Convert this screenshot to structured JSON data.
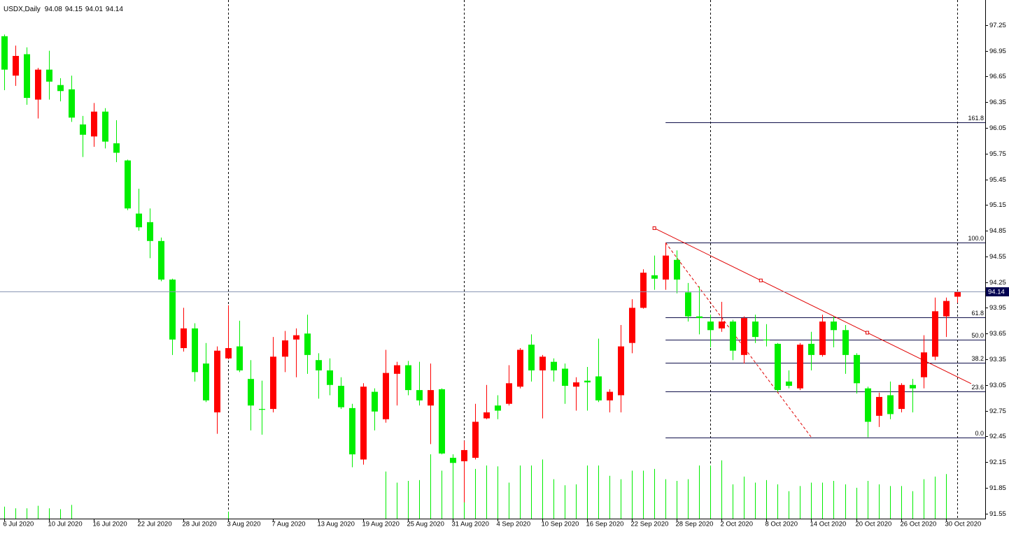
{
  "chart_data": {
    "type": "candlestick",
    "title": "USDX,Daily",
    "categories": [
      "6 Jul 2020",
      null,
      null,
      null,
      "10 Jul 2020",
      null,
      null,
      null,
      "16 Jul 2020",
      null,
      null,
      null,
      "22 Jul 2020",
      null,
      null,
      null,
      "28 Jul 2020",
      null,
      null,
      null,
      "3 Aug 2020",
      null,
      null,
      null,
      "7 Aug 2020",
      null,
      null,
      null,
      "13 Aug 2020",
      null,
      null,
      null,
      "19 Aug 2020",
      null,
      null,
      null,
      "25 Aug 2020",
      null,
      null,
      null,
      "31 Aug 2020",
      null,
      null,
      null,
      "4 Sep 2020",
      null,
      null,
      null,
      "10 Sep 2020",
      null,
      null,
      null,
      "16 Sep 2020",
      null,
      null,
      null,
      "22 Sep 2020",
      null,
      null,
      null,
      "28 Sep 2020",
      null,
      null,
      null,
      "2 Oct 2020",
      null,
      null,
      null,
      "8 Oct 2020",
      null,
      null,
      null,
      "14 Oct 2020",
      null,
      null,
      null,
      "20 Oct 2020",
      null,
      null,
      null,
      "26 Oct 2020",
      null,
      null,
      null,
      "30 Oct 2020",
      null
    ],
    "open": [
      97.12,
      96.66,
      96.91,
      96.38,
      96.73,
      96.55,
      96.5,
      96.09,
      95.95,
      96.24,
      95.87,
      95.67,
      95.05,
      94.95,
      94.73,
      94.28,
      93.48,
      93.71,
      93.3,
      92.73,
      93.36,
      93.5,
      93.12,
      92.77,
      92.77,
      93.38,
      93.58,
      93.65,
      93.34,
      93.22,
      93.04,
      92.78,
      92.18,
      92.97,
      92.65,
      93.18,
      93.28,
      92.99,
      92.81,
      93.0,
      92.2,
      92.16,
      92.2,
      92.66,
      92.81,
      92.83,
      93.03,
      93.52,
      93.22,
      93.32,
      93.24,
      93.03,
      93.1,
      93.15,
      92.87,
      92.93,
      93.54,
      93.95,
      94.33,
      94.28,
      94.51,
      94.13,
      93.85,
      93.79,
      93.71,
      93.79,
      93.4,
      93.79,
      93.58,
      93.53,
      93.09,
      93.01,
      93.53,
      93.4,
      93.79,
      93.69,
      93.4,
      93.01,
      92.69,
      92.93,
      92.77,
      93.05,
      93.14,
      93.38,
      93.85,
      94.08
    ],
    "high": [
      97.14,
      97.01,
      96.99,
      96.75,
      96.95,
      96.63,
      96.66,
      96.19,
      96.34,
      96.28,
      96.14,
      95.68,
      95.34,
      95.11,
      94.77,
      94.29,
      93.95,
      93.77,
      93.54,
      93.5,
      93.98,
      93.8,
      93.34,
      93.1,
      93.61,
      93.68,
      93.71,
      93.87,
      93.42,
      93.36,
      93.14,
      92.83,
      93.07,
      93.01,
      93.46,
      93.32,
      93.33,
      93.32,
      93.3,
      93.01,
      92.24,
      92.4,
      92.83,
      93.05,
      92.93,
      93.28,
      93.48,
      93.64,
      93.4,
      93.36,
      93.3,
      93.14,
      93.26,
      93.59,
      93.0,
      93.75,
      94.05,
      94.4,
      94.56,
      94.71,
      94.62,
      94.24,
      94.2,
      93.87,
      94.02,
      93.81,
      93.85,
      93.87,
      93.76,
      93.54,
      93.22,
      93.54,
      93.67,
      93.87,
      93.85,
      93.75,
      93.42,
      93.03,
      92.96,
      93.09,
      93.07,
      93.12,
      93.63,
      94.07,
      94.07,
      94.15
    ],
    "low": [
      96.49,
      96.54,
      96.32,
      96.16,
      96.38,
      96.36,
      96.12,
      95.71,
      95.83,
      95.81,
      95.65,
      95.09,
      94.85,
      94.53,
      94.26,
      93.4,
      93.44,
      93.09,
      92.85,
      92.48,
      93.35,
      93.2,
      92.52,
      92.47,
      92.73,
      93.2,
      93.14,
      93.18,
      92.89,
      92.93,
      92.77,
      92.09,
      92.12,
      92.52,
      92.61,
      92.81,
      92.93,
      92.81,
      92.36,
      92.24,
      92.12,
      91.68,
      92.18,
      92.65,
      92.65,
      92.81,
      93.01,
      93.09,
      92.66,
      93.09,
      92.83,
      92.75,
      92.75,
      92.85,
      92.73,
      92.73,
      93.42,
      93.94,
      94.16,
      94.16,
      94.12,
      93.79,
      93.64,
      93.49,
      93.67,
      93.34,
      93.3,
      93.54,
      93.5,
      92.97,
      93.01,
      92.99,
      93.22,
      93.38,
      93.49,
      93.18,
      92.95,
      92.44,
      92.56,
      92.65,
      92.73,
      92.73,
      93.01,
      93.34,
      93.61,
      94.01
    ],
    "close": [
      96.73,
      96.89,
      96.4,
      96.73,
      96.59,
      96.48,
      96.17,
      95.97,
      96.24,
      95.89,
      95.76,
      95.11,
      94.89,
      94.73,
      94.28,
      93.58,
      93.71,
      93.2,
      92.87,
      93.45,
      93.48,
      93.22,
      92.81,
      92.76,
      93.38,
      93.57,
      93.63,
      93.4,
      93.22,
      93.05,
      92.79,
      92.24,
      93.03,
      92.74,
      93.19,
      93.28,
      92.99,
      92.87,
      92.99,
      92.25,
      92.14,
      92.29,
      92.62,
      92.73,
      92.75,
      93.07,
      93.46,
      93.22,
      93.38,
      93.22,
      93.04,
      93.08,
      93.08,
      92.87,
      92.97,
      93.5,
      93.95,
      94.36,
      94.29,
      94.56,
      94.28,
      93.85,
      93.83,
      93.69,
      93.79,
      93.45,
      93.83,
      93.61,
      93.57,
      92.99,
      93.04,
      93.52,
      93.4,
      93.79,
      93.69,
      93.4,
      93.07,
      92.62,
      92.91,
      92.71,
      93.05,
      93.01,
      93.43,
      93.91,
      94.03,
      94.14
    ],
    "bull_color": "#ff0000",
    "bear_color": "#00ee00",
    "volume": {
      "color": "#00ee00",
      "values": [
        91.63,
        91.61,
        91.61,
        91.64,
        91.61,
        91.6,
        91.65,
        null,
        null,
        null,
        null,
        null,
        null,
        null,
        null,
        null,
        null,
        null,
        null,
        null,
        91.57,
        null,
        null,
        null,
        null,
        null,
        null,
        null,
        null,
        null,
        null,
        null,
        null,
        null,
        92.04,
        91.91,
        91.93,
        91.94,
        92.24,
        92.05,
        92.2,
        92.11,
        92.07,
        92.11,
        92.1,
        91.91,
        92.11,
        92.11,
        92.18,
        91.95,
        91.88,
        91.89,
        92.11,
        92.11,
        91.99,
        91.95,
        92.05,
        92.05,
        92.07,
        91.95,
        91.93,
        91.95,
        92.11,
        92.11,
        92.17,
        91.89,
        91.98,
        91.91,
        91.94,
        91.89,
        91.81,
        91.87,
        91.91,
        91.91,
        91.93,
        91.89,
        91.85,
        91.93,
        91.89,
        91.87,
        91.87,
        91.81,
        91.95,
        91.98,
        92.01,
        null
      ]
    },
    "ylim": [
      91.49,
      97.51
    ],
    "yticks": [
      97.25,
      96.95,
      96.65,
      96.35,
      96.05,
      95.75,
      95.45,
      95.15,
      94.85,
      94.55,
      94.25,
      93.95,
      93.65,
      93.35,
      93.05,
      92.75,
      92.45,
      92.15,
      91.85,
      91.55
    ],
    "price_line_color": "#8a96b4",
    "price_label_color": "#000050",
    "period_separators": [
      20,
      41,
      63,
      85
    ],
    "trendline": {
      "color": "#e00000",
      "points": [
        {
          "x": 58,
          "y": 94.88
        },
        {
          "x": 77,
          "y": 93.66
        }
      ]
    },
    "fibonacci": {
      "color": "#10104a",
      "base_color": "#e00000",
      "from": {
        "x": 59,
        "y": 94.71
      },
      "to": {
        "x": 72,
        "y": 92.44
      },
      "levels": [
        161.8,
        {
          "value": 100,
          "label": "100.0"
        },
        61.8,
        {
          "value": 50,
          "label": "50.0"
        },
        38.2,
        23.6,
        {
          "value": 0,
          "label": "0.0"
        }
      ]
    }
  }
}
